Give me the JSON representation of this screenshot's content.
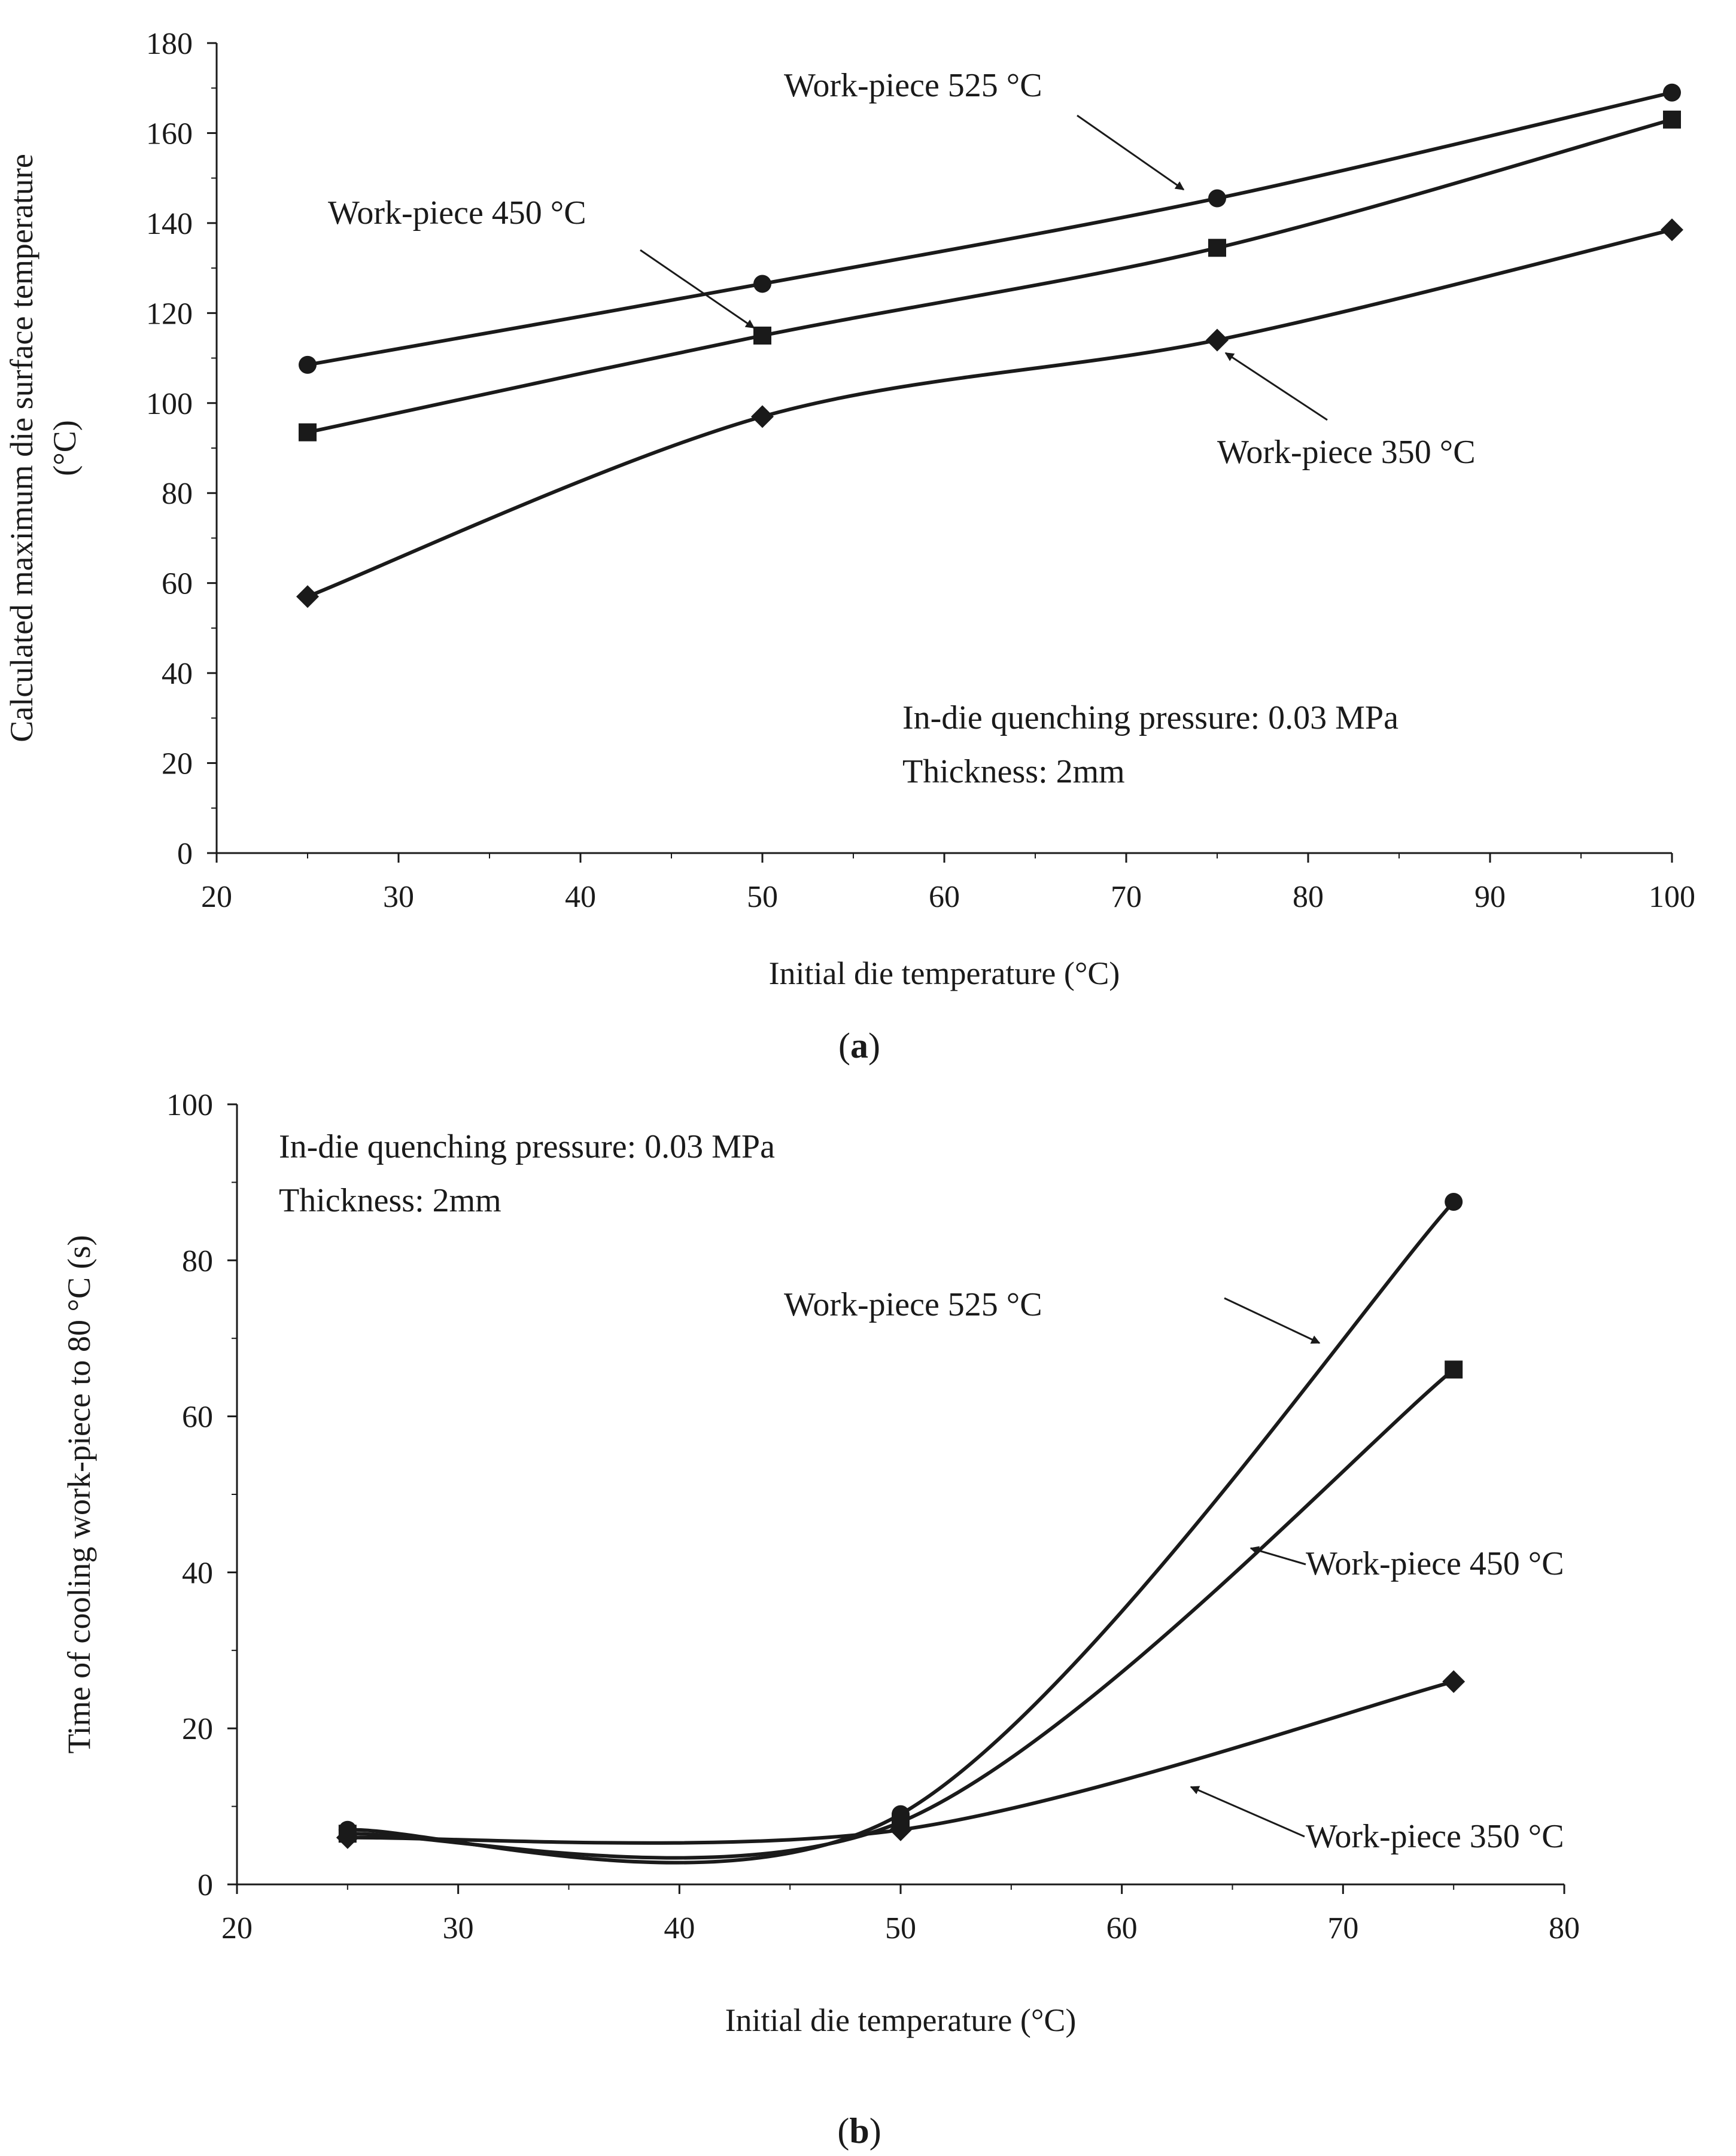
{
  "figure": {
    "panels": [
      {
        "open": "(",
        "letter": "a",
        "close": ")"
      },
      {
        "open": "(",
        "letter": "b",
        "close": ")"
      }
    ]
  },
  "chart_data": [
    {
      "type": "line",
      "xlabel": "Initial die temperature (°C)",
      "ylabel_lines": [
        "Calculated maximum die surface temperature",
        "(°C)"
      ],
      "xlim": [
        20,
        100
      ],
      "ylim": [
        0,
        180
      ],
      "x_ticks": [
        20,
        30,
        40,
        50,
        60,
        70,
        80,
        90,
        100
      ],
      "y_ticks": [
        0,
        20,
        40,
        60,
        80,
        100,
        120,
        140,
        160,
        180
      ],
      "grid": false,
      "x": [
        25,
        50,
        75,
        100
      ],
      "series": [
        {
          "name": "Work-piece 525 °C",
          "marker": "circle",
          "values": [
            108.5,
            126.5,
            145.5,
            169
          ]
        },
        {
          "name": "Work-piece 450 °C",
          "marker": "square",
          "values": [
            93.5,
            115,
            134.5,
            163
          ]
        },
        {
          "name": "Work-piece 350 °C",
          "marker": "diamond",
          "values": [
            57,
            97,
            114,
            138.5
          ]
        }
      ],
      "annotations": [
        "In-die quenching pressure: 0.03 MPa",
        "Thickness: 2mm"
      ]
    },
    {
      "type": "line",
      "xlabel": "Initial die temperature (°C)",
      "ylabel_lines": [
        "Time of cooling work-piece to 80 °C (s)"
      ],
      "xlim": [
        20,
        80
      ],
      "ylim": [
        0,
        100
      ],
      "x_ticks": [
        20,
        30,
        40,
        50,
        60,
        70,
        80
      ],
      "y_ticks": [
        0,
        20,
        40,
        60,
        80,
        100
      ],
      "grid": false,
      "x": [
        25,
        50,
        75
      ],
      "series": [
        {
          "name": "Work-piece 525 °C",
          "marker": "circle",
          "values": [
            7,
            9,
            87.5
          ]
        },
        {
          "name": "Work-piece 450 °C",
          "marker": "square",
          "values": [
            6.5,
            8,
            66
          ]
        },
        {
          "name": "Work-piece 350 °C",
          "marker": "diamond",
          "values": [
            6,
            7,
            26
          ]
        }
      ],
      "annotations": [
        "In-die quenching pressure: 0.03 MPa",
        "Thickness: 2mm"
      ]
    }
  ]
}
